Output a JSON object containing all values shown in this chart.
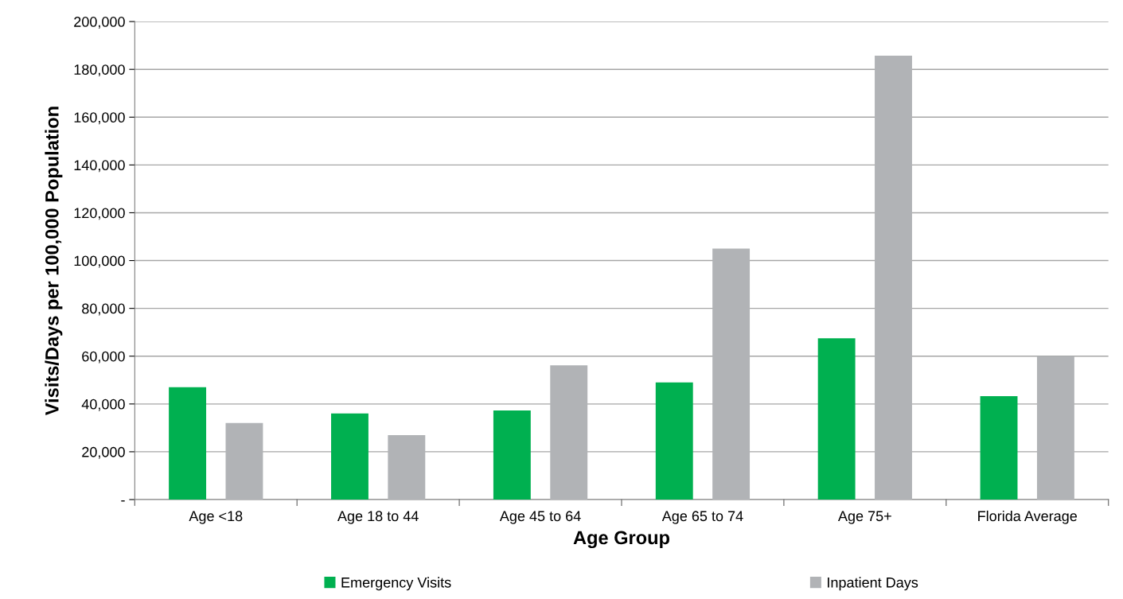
{
  "chart_data": {
    "type": "bar",
    "xlabel": "Age Group",
    "ylabel": "Visits/Days per 100,000 Population",
    "categories": [
      "Age <18",
      "Age 18 to 44",
      "Age 45 to 64",
      "Age 65 to 74",
      "Age 75+",
      "Florida Average"
    ],
    "series": [
      {
        "name": "Emergency Visits",
        "color": "#00b050",
        "values": [
          47000,
          36000,
          37300,
          49000,
          67500,
          43300
        ]
      },
      {
        "name": "Inpatient Days",
        "color": "#b1b3b6",
        "values": [
          32000,
          27000,
          56200,
          105000,
          185700,
          60000
        ]
      }
    ],
    "ylim": [
      0,
      200000
    ],
    "yticks": [
      {
        "value": 0,
        "label": "-"
      },
      {
        "value": 20000,
        "label": "20,000"
      },
      {
        "value": 40000,
        "label": "40,000"
      },
      {
        "value": 60000,
        "label": "60,000"
      },
      {
        "value": 80000,
        "label": "80,000"
      },
      {
        "value": 100000,
        "label": "100,000"
      },
      {
        "value": 120000,
        "label": "120,000"
      },
      {
        "value": 140000,
        "label": "140,000"
      },
      {
        "value": 160000,
        "label": "160,000"
      },
      {
        "value": 180000,
        "label": "180,000"
      },
      {
        "value": 200000,
        "label": "200,000"
      }
    ],
    "grid": "y",
    "legend": "bottom"
  }
}
